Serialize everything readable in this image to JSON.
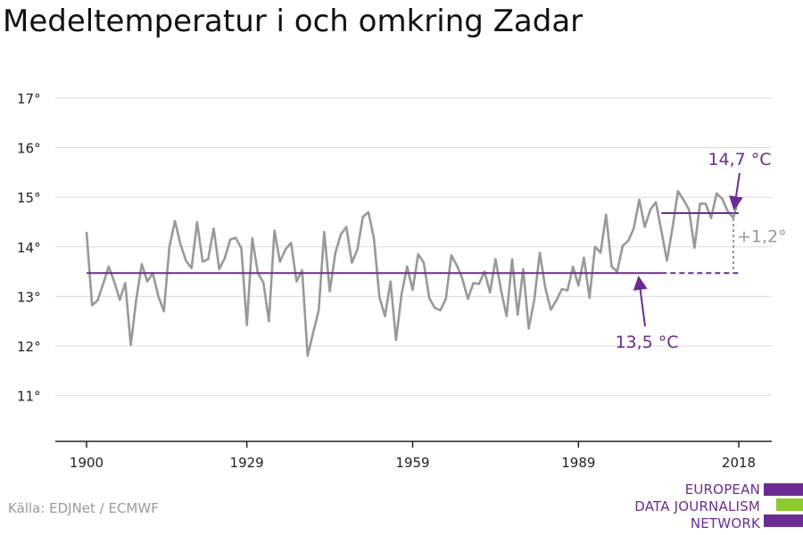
{
  "title": "Medeltemperatur i och omkring Zadar",
  "source": "Källa: EDJNet / ECMWF",
  "logo": {
    "lines": [
      "EUROPEAN",
      "DATA JOURNALISM",
      "NETWORK"
    ],
    "colors": [
      "#6b2c91",
      "#8ccc2e",
      "#6b2c91"
    ]
  },
  "colors": {
    "series": "#999999",
    "accent": "#6b2c91",
    "grid": "#dddddd",
    "axis": "#222222",
    "annotation_diff": "#999999"
  },
  "chart_data": {
    "type": "line",
    "title": "Medeltemperatur i och omkring Zadar",
    "xlabel": "",
    "ylabel": "",
    "xlim": [
      1900,
      2018
    ],
    "ylim": [
      10,
      17
    ],
    "x_ticks": [
      1900,
      1929,
      1959,
      1989,
      2018
    ],
    "y_ticks": [
      11,
      12,
      13,
      14,
      15,
      16,
      17
    ],
    "y_tick_labels": [
      "11°",
      "12°",
      "13°",
      "14°",
      "15°",
      "16°",
      "17°"
    ],
    "grid": true,
    "series": [
      {
        "x": [
          1900,
          1901,
          1902,
          1903,
          1904,
          1905,
          1906,
          1907,
          1908,
          1909,
          1910,
          1911,
          1912,
          1913,
          1914,
          1915,
          1916,
          1917,
          1918,
          1919,
          1920,
          1921,
          1922,
          1923,
          1924,
          1925,
          1926,
          1927,
          1928,
          1929,
          1930,
          1931,
          1932,
          1933,
          1934,
          1935,
          1936,
          1937,
          1938,
          1939,
          1940,
          1941,
          1942,
          1943,
          1944,
          1945,
          1946,
          1947,
          1948,
          1949,
          1950,
          1951,
          1952,
          1953,
          1954,
          1955,
          1956,
          1957,
          1958,
          1959,
          1960,
          1961,
          1962,
          1963,
          1964,
          1965,
          1966,
          1967,
          1968,
          1969,
          1970,
          1971,
          1972,
          1973,
          1974,
          1975,
          1976,
          1977,
          1978,
          1979,
          1980,
          1981,
          1982,
          1983,
          1984,
          1985,
          1986,
          1987,
          1988,
          1989,
          1990,
          1991,
          1992,
          1993,
          1994,
          1995,
          1996,
          1997,
          1998,
          1999,
          2000,
          2001,
          2002,
          2003,
          2004,
          2005,
          2006,
          2007,
          2008,
          2009,
          2010,
          2011,
          2012,
          2013,
          2014,
          2015,
          2016,
          2017,
          2018
        ],
        "values": [
          14.3,
          12.82,
          12.92,
          13.25,
          13.6,
          13.3,
          12.93,
          13.27,
          12.02,
          12.95,
          13.65,
          13.3,
          13.47,
          13.0,
          12.7,
          14.0,
          14.52,
          14.05,
          13.72,
          13.57,
          14.5,
          13.7,
          13.75,
          14.37,
          13.55,
          13.77,
          14.15,
          14.18,
          13.97,
          12.42,
          14.17,
          13.47,
          13.28,
          12.5,
          14.33,
          13.7,
          13.95,
          14.08,
          13.3,
          13.53,
          11.8,
          12.27,
          12.72,
          14.3,
          13.1,
          13.87,
          14.25,
          14.4,
          13.68,
          13.95,
          14.6,
          14.7,
          14.17,
          12.98,
          12.6,
          13.3,
          12.12,
          13.05,
          13.6,
          13.13,
          13.85,
          13.68,
          12.97,
          12.77,
          12.72,
          12.95,
          13.83,
          13.62,
          13.35,
          12.95,
          13.27,
          13.25,
          13.5,
          13.08,
          13.75,
          13.12,
          12.6,
          13.75,
          12.63,
          13.55,
          12.35,
          12.93,
          13.88,
          13.17,
          12.73,
          12.92,
          13.15,
          13.12,
          13.6,
          13.22,
          13.78,
          12.97,
          14.0,
          13.88,
          14.65,
          13.6,
          13.5,
          14.02,
          14.12,
          14.37,
          14.95,
          14.4,
          14.75,
          14.9,
          14.32,
          13.72,
          14.38,
          15.12,
          14.95,
          14.75,
          13.98,
          14.87,
          14.87,
          14.58,
          15.08,
          14.97,
          14.72,
          14.58,
          14.98
        ]
      }
    ],
    "reference_lines": [
      {
        "label": "13,5 °C",
        "value": 13.47,
        "x_start": 1900,
        "x_solid_end": 2004,
        "x_end": 2018
      },
      {
        "label": "14,7 °C",
        "value": 14.68,
        "x_start": 2004,
        "x_end": 2018
      }
    ],
    "annotations": [
      {
        "label": "+1,2°",
        "x": 2018
      }
    ]
  }
}
